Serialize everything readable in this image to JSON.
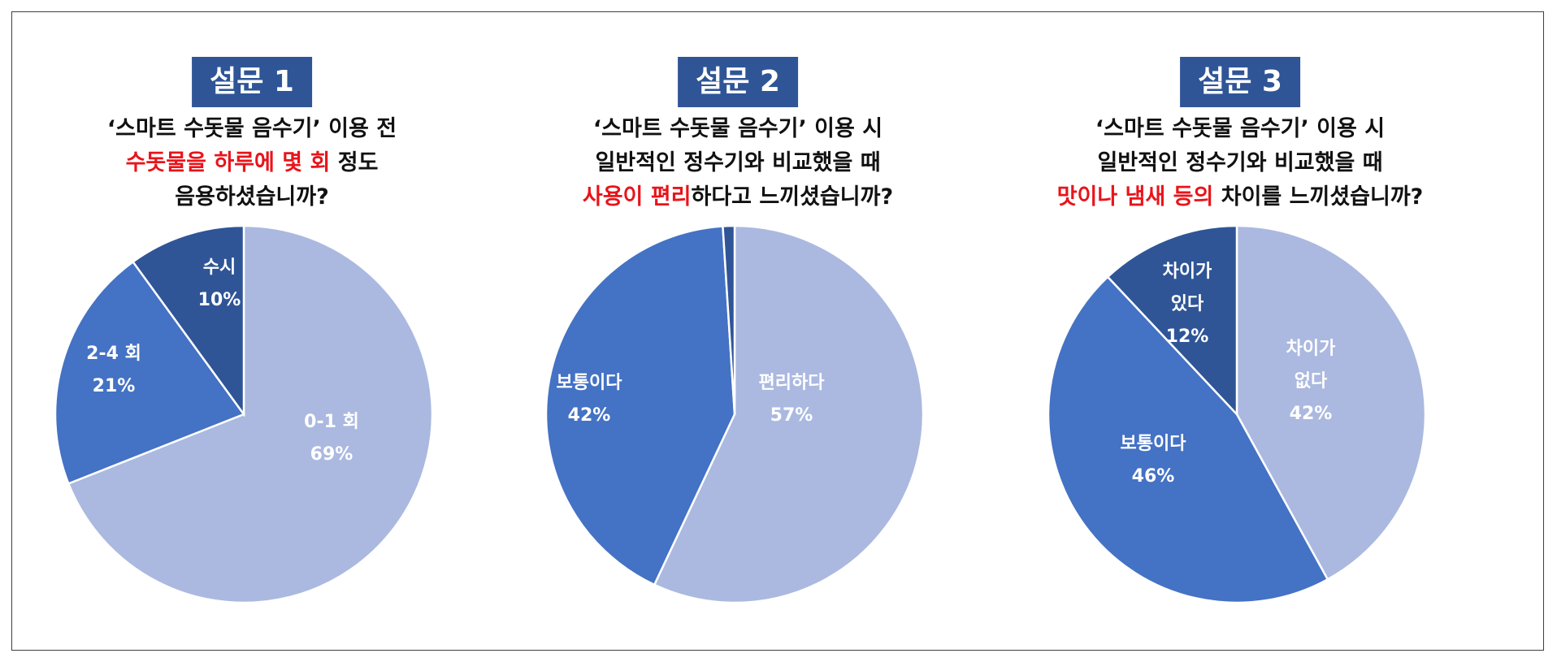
{
  "colors": {
    "light": "#abb9e0",
    "mid": "#4472c4",
    "dark": "#2f5597",
    "badge": "#2f5597",
    "highlight": "#e8141b"
  },
  "surveys": [
    {
      "title": "설문 1",
      "question": [
        [
          {
            "t": "‘스마트 수돗물 음수기’ 이용 전",
            "hl": false
          }
        ],
        [
          {
            "t": "수돗물을 하루에 몇 회",
            "hl": true
          },
          {
            "t": " 정도",
            "hl": false
          }
        ],
        [
          {
            "t": "음용하셨습니까?",
            "hl": false
          }
        ]
      ]
    },
    {
      "title": "설문 2",
      "question": [
        [
          {
            "t": "‘스마트 수돗물 음수기’ 이용 시",
            "hl": false
          }
        ],
        [
          {
            "t": "일반적인 정수기와 비교했을 때",
            "hl": false
          }
        ],
        [
          {
            "t": "사용이 편리",
            "hl": true
          },
          {
            "t": "하다고 느끼셨습니까?",
            "hl": false
          }
        ]
      ]
    },
    {
      "title": "설문 3",
      "question": [
        [
          {
            "t": "‘스마트 수돗물 음수기’ 이용 시",
            "hl": false
          }
        ],
        [
          {
            "t": "일반적인 정수기와 비교했을 때",
            "hl": false
          }
        ],
        [
          {
            "t": "맛이나 냄새 등의",
            "hl": true
          },
          {
            "t": " 차이를 느끼셨습니까?",
            "hl": false
          }
        ]
      ]
    }
  ],
  "chart_data": [
    {
      "type": "pie",
      "title": "설문 1",
      "slices": [
        {
          "label": [
            "0-1 회"
          ],
          "value": 69,
          "value_label": "69%",
          "color": "#abb9e0"
        },
        {
          "label": [
            "2-4 회"
          ],
          "value": 21,
          "value_label": "21%",
          "color": "#4472c4"
        },
        {
          "label": [
            "수시"
          ],
          "value": 10,
          "value_label": "10%",
          "color": "#2f5597"
        }
      ]
    },
    {
      "type": "pie",
      "title": "설문 2",
      "slices": [
        {
          "label": [
            "편리하다"
          ],
          "value": 57,
          "value_label": "57%",
          "color": "#abb9e0"
        },
        {
          "label": [
            "보통이다"
          ],
          "value": 42,
          "value_label": "42%",
          "color": "#4472c4"
        },
        {
          "label": [],
          "value": 1,
          "value_label": "",
          "color": "#2f5597"
        }
      ]
    },
    {
      "type": "pie",
      "title": "설문 3",
      "slices": [
        {
          "label": [
            "차이가",
            "없다"
          ],
          "value": 42,
          "value_label": "42%",
          "color": "#abb9e0"
        },
        {
          "label": [
            "보통이다"
          ],
          "value": 46,
          "value_label": "46%",
          "color": "#4472c4"
        },
        {
          "label": [
            "차이가",
            "있다"
          ],
          "value": 12,
          "value_label": "12%",
          "color": "#2f5597"
        }
      ]
    }
  ]
}
